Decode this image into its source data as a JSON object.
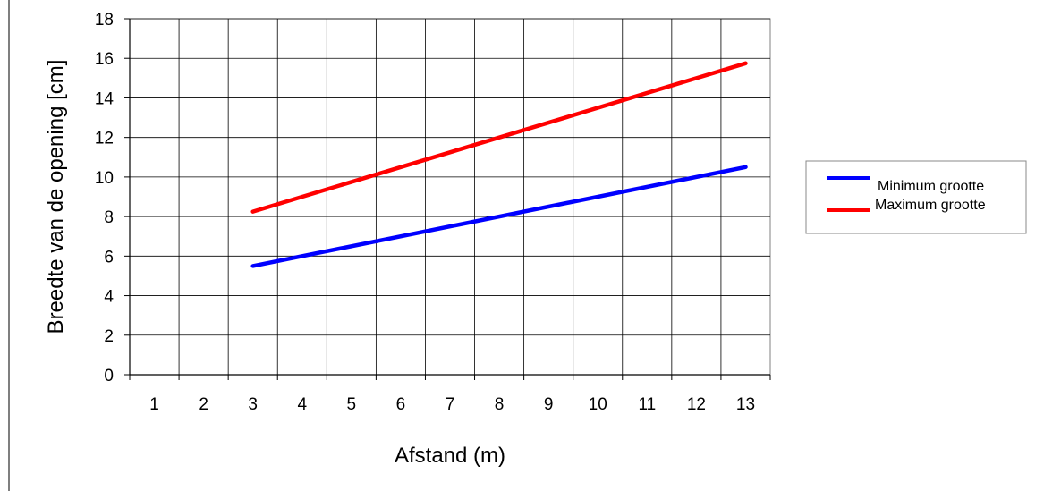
{
  "chart_data": {
    "type": "line",
    "title": "",
    "xlabel": "Afstand (m)",
    "ylabel": "Breedte van de opening [cm]",
    "xlim": [
      0.5,
      13.5
    ],
    "ylim": [
      0,
      18
    ],
    "xticks": [
      1,
      2,
      3,
      4,
      5,
      6,
      7,
      8,
      9,
      10,
      11,
      12,
      13
    ],
    "yticks": [
      0,
      2,
      4,
      6,
      8,
      10,
      12,
      14,
      16,
      18
    ],
    "grid": true,
    "legend_position": "right",
    "series": [
      {
        "name": "Minimum grootte",
        "color": "#0000ff",
        "points": [
          [
            3,
            5.5
          ],
          [
            13,
            10.5
          ]
        ]
      },
      {
        "name": "Maximum grootte",
        "color": "#ff0000",
        "points": [
          [
            3,
            8.25
          ],
          [
            13,
            15.75
          ]
        ]
      }
    ]
  }
}
